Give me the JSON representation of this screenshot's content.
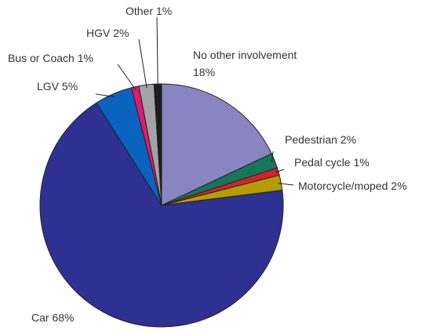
{
  "chart_data": {
    "type": "pie",
    "categories": [
      "No other involvement",
      "Pedestrian",
      "Pedal cycle",
      "Motorcycle/moped",
      "Car",
      "LGV",
      "Bus or Coach",
      "HGV",
      "Other"
    ],
    "values": [
      18,
      2,
      1,
      2,
      68,
      5,
      1,
      2,
      1
    ],
    "value_labels": [
      "18%",
      "2%",
      "1%",
      "2%",
      "68%",
      "5%",
      "1%",
      "2%",
      "1%"
    ],
    "colors": [
      "#8985c3",
      "#16775a",
      "#d3222a",
      "#b59d00",
      "#2e3192",
      "#0a63bf",
      "#e0196d",
      "#a3a3a5",
      "#1c1c1c"
    ]
  }
}
